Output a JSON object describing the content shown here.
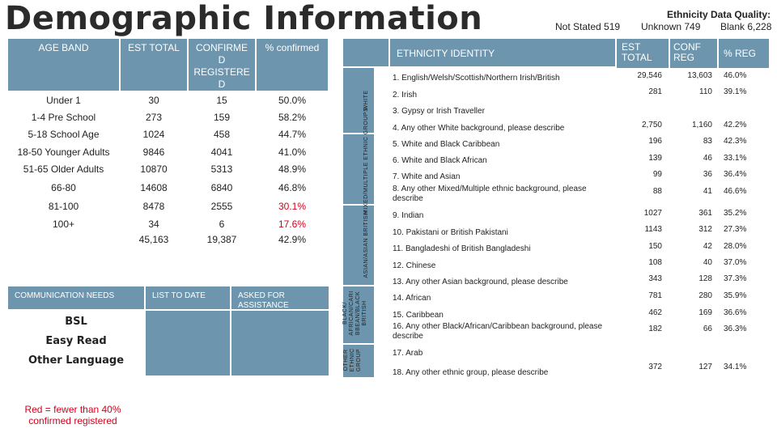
{
  "page_title": "Demographic Information",
  "not_stated": "Not Stated 519",
  "quality": {
    "title": "Ethnicity Data Quality:",
    "unknown": "Unknown 749",
    "blank": "Blank 6,228"
  },
  "age_table": {
    "headers": [
      "AGE BAND",
      "EST TOTAL",
      "CONFIRME D REGISTERE D",
      "% confirmed"
    ],
    "rows": [
      {
        "band": "Under 1",
        "total": "30",
        "confirmed": "15",
        "pct": "50.0%",
        "low": false
      },
      {
        "band": "1-4 Pre School",
        "total": "273",
        "confirmed": "159",
        "pct": "58.2%",
        "low": false
      },
      {
        "band": "5-18 School Age",
        "total": "1024",
        "confirmed": "458",
        "pct": "44.7%",
        "low": false
      },
      {
        "band": "18-50 Younger Adults",
        "total": "9846",
        "confirmed": "4041",
        "pct": "41.0%",
        "low": false
      },
      {
        "band": "51-65 Older Adults",
        "total": "10870",
        "confirmed": "5313",
        "pct": "48.9%",
        "low": false
      },
      {
        "band": "66-80",
        "total": "14608",
        "confirmed": "6840",
        "pct": "46.8%",
        "low": false
      },
      {
        "band": "81-100",
        "total": "8478",
        "confirmed": "2555",
        "pct": "30.1%",
        "low": true
      },
      {
        "band": "100+",
        "total": "34",
        "confirmed": "6",
        "pct": "17.6%",
        "low": true
      }
    ],
    "totals": {
      "total": "45,163",
      "confirmed": "19,387",
      "pct": "42.9%"
    }
  },
  "comm": {
    "headers": [
      "COMMUNICATION NEEDS",
      "LIST TO DATE",
      "ASKED FOR ASSISTANCE"
    ],
    "items": [
      "BSL",
      "Easy Read",
      "Other Language"
    ]
  },
  "legend_note": "Red = fewer than 40% confirmed registered",
  "eth_table": {
    "header": "ETHNICITY IDENTITY",
    "col_headers": [
      "EST TOTAL",
      "CONF REG",
      "% REG"
    ],
    "groups": [
      "WHITE",
      "MIXED/MULTIPLE ETHNIC GROUPS",
      "ASIAN/ASIAN BRITISH",
      "BLACK/ AFRICAN/CARI BBEAN/BLACK BRITISH",
      "OTHER ETHNIC GROUP"
    ],
    "rows": [
      {
        "label": "1. English/Welsh/Scottish/Northern Irish/British",
        "total": "29,546",
        "conf": "13,603",
        "pct": "46.0%",
        "low": false
      },
      {
        "label": "2. Irish",
        "total": "281",
        "conf": "110",
        "pct": "39.1%",
        "low": true
      },
      {
        "label": "3. Gypsy or Irish Traveller",
        "total": "",
        "conf": "",
        "pct": "",
        "low": false
      },
      {
        "label": "4. Any other White background, please describe",
        "total": "2,750",
        "conf": "1,160",
        "pct": "42.2%",
        "low": false
      },
      {
        "label": "5. White and Black Caribbean",
        "total": "196",
        "conf": "83",
        "pct": "42.3%",
        "low": false
      },
      {
        "label": "6. White and Black African",
        "total": "139",
        "conf": "46",
        "pct": "33.1%",
        "low": true
      },
      {
        "label": "7. White and Asian",
        "total": "99",
        "conf": "36",
        "pct": "36.4%",
        "low": true
      },
      {
        "label": "8. Any other Mixed/Multiple ethnic background, please describe",
        "total": "88",
        "conf": "41",
        "pct": "46.6%",
        "low": false
      },
      {
        "label": "9. Indian",
        "total": "1027",
        "conf": "361",
        "pct": "35.2%",
        "low": true
      },
      {
        "label": "10. Pakistani or British Pakistani",
        "total": "1143",
        "conf": "312",
        "pct": "27.3%",
        "low": true
      },
      {
        "label": "11. Bangladeshi of British Bangladeshi",
        "total": "150",
        "conf": "42",
        "pct": "28.0%",
        "low": true
      },
      {
        "label": "12. Chinese",
        "total": "108",
        "conf": "40",
        "pct": "37.0%",
        "low": true
      },
      {
        "label": "13. Any other Asian background, please describe",
        "total": "343",
        "conf": "128",
        "pct": "37.3%",
        "low": true
      },
      {
        "label": "14. African",
        "total": "781",
        "conf": "280",
        "pct": "35.9%",
        "low": true
      },
      {
        "label": "15. Caribbean",
        "total": "462",
        "conf": "169",
        "pct": "36.6%",
        "low": true
      },
      {
        "label": "16. Any other Black/African/Caribbean background, please describe",
        "total": "182",
        "conf": "66",
        "pct": "36.3%",
        "low": true
      },
      {
        "label": "17. Arab",
        "total": "",
        "conf": "",
        "pct": "",
        "low": false
      },
      {
        "label": "18. Any other ethnic group, please describe",
        "total": "372",
        "conf": "127",
        "pct": "34.1%",
        "low": true
      }
    ]
  },
  "colors": {
    "header_bg": "#6d95ad",
    "low_value": "#d0021b"
  }
}
